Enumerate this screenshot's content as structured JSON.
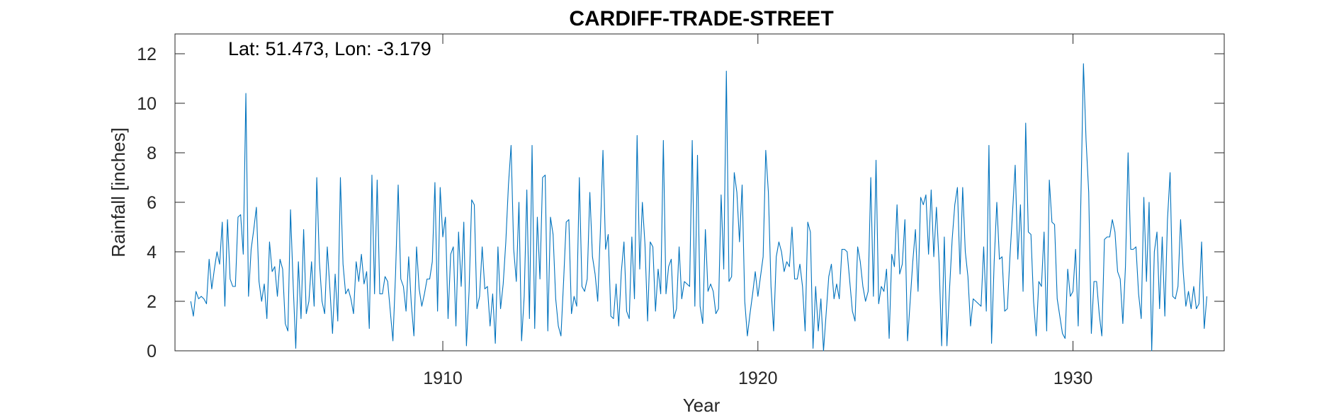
{
  "chart_data": {
    "type": "line",
    "title": "CARDIFF-TRADE-STREET",
    "xlabel": "Year",
    "ylabel": "Rainfall [inches]",
    "annotation": "Lat: 51.473, Lon: -3.179",
    "xlim": [
      1901.5,
      1934.8
    ],
    "ylim": [
      0,
      12.8
    ],
    "xticks": [
      1910,
      1920,
      1930
    ],
    "yticks": [
      0,
      2,
      4,
      6,
      8,
      10,
      12
    ],
    "grid": false,
    "legend": "none",
    "color": "#0072BD",
    "series": [
      {
        "start": 1902.0,
        "step": 0.08333,
        "values": [
          2.0,
          1.4,
          2.4,
          2.1,
          2.2,
          2.1,
          1.9,
          3.7,
          2.5,
          3.3,
          4.0,
          3.5,
          5.2,
          1.8,
          5.3,
          2.9,
          2.6,
          2.6,
          5.4,
          5.5,
          3.9,
          10.4,
          2.2,
          4.1,
          4.9,
          5.8,
          2.8,
          2.0,
          2.7,
          1.3,
          4.4,
          3.2,
          3.4,
          2.2,
          3.7,
          3.3,
          1.1,
          0.8,
          5.7,
          2.7,
          0.1,
          3.6,
          1.3,
          4.9,
          1.5,
          2.0,
          3.6,
          1.8,
          7.0,
          3.6,
          2.0,
          1.5,
          4.2,
          2.5,
          0.7,
          3.1,
          1.2,
          7.0,
          3.5,
          2.3,
          2.5,
          2.1,
          1.5,
          3.6,
          2.8,
          3.9,
          2.7,
          3.2,
          0.9,
          7.1,
          2.3,
          6.9,
          2.3,
          2.3,
          3.0,
          2.8,
          1.6,
          0.4,
          3.1,
          6.7,
          2.9,
          2.6,
          1.6,
          3.8,
          1.9,
          0.6,
          4.2,
          2.5,
          1.8,
          2.3,
          2.9,
          2.9,
          3.6,
          6.8,
          1.6,
          6.6,
          4.6,
          5.4,
          1.3,
          3.9,
          4.2,
          1.0,
          4.8,
          2.6,
          5.2,
          0.2,
          2.4,
          6.1,
          5.9,
          1.7,
          2.2,
          4.2,
          2.5,
          2.6,
          1.0,
          2.3,
          0.3,
          4.2,
          1.7,
          2.7,
          4.4,
          6.7,
          8.3,
          4.1,
          2.8,
          6.0,
          0.4,
          2.2,
          6.5,
          1.3,
          8.3,
          0.9,
          5.4,
          2.9,
          7.0,
          7.1,
          0.8,
          5.4,
          4.7,
          2.1,
          1.0,
          0.6,
          2.8,
          5.2,
          5.3,
          1.5,
          2.2,
          1.8,
          7.0,
          2.6,
          2.4,
          2.9,
          6.4,
          3.8,
          3.1,
          2.0,
          4.8,
          8.1,
          4.1,
          4.7,
          1.4,
          1.3,
          2.7,
          1.0,
          3.2,
          4.4,
          1.6,
          1.3,
          4.6,
          2.1,
          8.7,
          3.3,
          6.0,
          4.3,
          1.2,
          4.4,
          4.2,
          1.6,
          3.3,
          2.3,
          8.5,
          2.3,
          3.4,
          3.7,
          1.3,
          1.7,
          4.2,
          2.1,
          2.8,
          2.7,
          2.6,
          8.5,
          1.8,
          7.9,
          1.8,
          1.1,
          4.9,
          2.4,
          2.7,
          2.4,
          1.5,
          1.7,
          6.3,
          3.3,
          11.3,
          2.8,
          3.0,
          7.2,
          6.4,
          4.4,
          6.7,
          2.0,
          0.6,
          1.5,
          2.3,
          3.2,
          2.2,
          3.0,
          3.8,
          8.1,
          6.4,
          2.6,
          0.8,
          3.8,
          4.4,
          4.0,
          3.2,
          3.6,
          3.4,
          5.0,
          2.9,
          2.9,
          3.5,
          2.6,
          0.8,
          5.2,
          4.8,
          0.1,
          2.6,
          0.8,
          2.1,
          0.0,
          1.5,
          3.0,
          3.5,
          2.1,
          2.7,
          2.1,
          4.1,
          4.1,
          4.0,
          2.8,
          1.6,
          1.2,
          4.2,
          3.6,
          2.6,
          2.0,
          2.4,
          7.0,
          2.2,
          7.7,
          1.9,
          2.6,
          2.4,
          3.3,
          0.5,
          3.9,
          3.4,
          5.9,
          3.1,
          3.5,
          5.3,
          0.4,
          2.0,
          3.6,
          4.9,
          2.4,
          6.2,
          5.9,
          6.3,
          3.9,
          6.5,
          3.8,
          5.8,
          3.6,
          0.2,
          4.6,
          0.2,
          2.5,
          4.5,
          5.9,
          6.6,
          3.1,
          6.6,
          4.0,
          3.0,
          1.0,
          2.1,
          2.0,
          1.9,
          1.8,
          4.2,
          1.6,
          8.3,
          0.3,
          3.6,
          6.0,
          3.7,
          3.8,
          1.6,
          1.7,
          3.8,
          5.6,
          7.5,
          3.7,
          5.9,
          2.4,
          9.2,
          4.8,
          4.7,
          2.0,
          0.6,
          2.8,
          2.6,
          4.8,
          0.8,
          6.9,
          5.2,
          5.1,
          2.1,
          1.4,
          0.7,
          0.5,
          3.3,
          2.2,
          2.4,
          4.1,
          1.0,
          6.0,
          11.6,
          8.5,
          6.4,
          0.7,
          2.8,
          2.8,
          1.5,
          0.6,
          4.5,
          4.6,
          4.6,
          5.3,
          4.8,
          3.2,
          2.9,
          1.1,
          3.4,
          8.0,
          4.1,
          4.1,
          4.2,
          2.3,
          1.3,
          6.2,
          2.8,
          6.0,
          0.0,
          4.0,
          4.8,
          1.7,
          4.6,
          1.4,
          5.3,
          7.2,
          2.2,
          2.1,
          2.6,
          5.3,
          3.2,
          1.8,
          2.4,
          1.7,
          2.6,
          1.7,
          1.9,
          4.4,
          0.9,
          2.2
        ]
      }
    ]
  }
}
